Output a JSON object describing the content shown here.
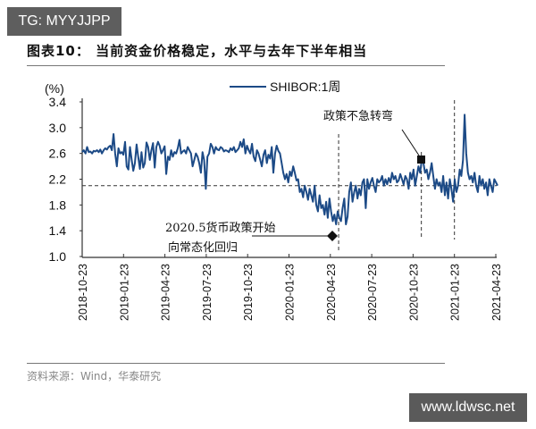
{
  "watermarks": {
    "top": "TG: MYYJJPP",
    "bottom": "www.ldwsc.net"
  },
  "figure": {
    "title": "图表10： 当前资金价格稳定，水平与去年下半年相当",
    "source": "资料来源：Wind，华泰研究"
  },
  "colors": {
    "line": "#1c4a86",
    "axis": "#333333",
    "text": "#111111"
  },
  "chart_data": {
    "type": "line",
    "title": "图表10： 当前资金价格稳定，水平与去年下半年相当",
    "xlabel": "",
    "ylabel": "(%)",
    "ylim": [
      1.0,
      3.4
    ],
    "yticks": [
      "3.4",
      "3.0",
      "2.6",
      "2.2",
      "1.8",
      "1.4",
      "1.0"
    ],
    "xticks": [
      "2018-10-23",
      "2019-01-23",
      "2019-04-23",
      "2019-07-23",
      "2019-10-23",
      "2020-01-23",
      "2020-04-23",
      "2020-07-23",
      "2020-10-23",
      "2021-01-23",
      "2021-04-23"
    ],
    "grid": false,
    "legend": {
      "position": "top-right",
      "entries": [
        "SHIBOR:1周"
      ]
    },
    "reference_line": {
      "y": 2.1,
      "style": "dashed",
      "label": ""
    },
    "vertical_markers": [
      {
        "x_index": 6.2,
        "style": "dashed"
      },
      {
        "x_index": 8.2,
        "style": "dashed"
      },
      {
        "x_index": 9.0,
        "style": "dashed"
      }
    ],
    "annotations": [
      {
        "text": [
          "2020.5货币政策开始",
          "向常态化回归"
        ],
        "marker": "diamond",
        "x_index": 6.0,
        "y": 1.33
      },
      {
        "text": [
          "政策不急转弯"
        ],
        "marker": "square",
        "x_index": 8.1,
        "y": 2.5
      }
    ],
    "series": [
      {
        "name": "SHIBOR:1周",
        "x_start": "2018-10-23",
        "x_end": "2021-05-01",
        "values": [
          2.62,
          2.65,
          2.6,
          2.7,
          2.62,
          2.63,
          2.6,
          2.64,
          2.63,
          2.65,
          2.62,
          2.66,
          2.6,
          2.65,
          2.68,
          2.66,
          2.7,
          2.72,
          2.65,
          2.9,
          2.6,
          2.4,
          2.68,
          2.6,
          2.62,
          2.58,
          2.78,
          2.4,
          2.35,
          2.7,
          2.5,
          2.33,
          2.45,
          2.74,
          2.55,
          2.36,
          2.62,
          2.38,
          2.45,
          2.77,
          2.7,
          2.5,
          2.65,
          2.76,
          2.38,
          2.7,
          2.78,
          2.72,
          2.6,
          2.65,
          2.71,
          2.28,
          2.55,
          2.5,
          2.65,
          2.55,
          2.62,
          2.6,
          2.68,
          2.81,
          2.6,
          2.63,
          2.65,
          2.6,
          2.7,
          2.65,
          2.6,
          2.4,
          2.5,
          2.6,
          2.55,
          2.45,
          2.3,
          2.62,
          2.5,
          2.05,
          2.55,
          2.6,
          2.75,
          2.7,
          2.6,
          2.7,
          2.66,
          2.65,
          2.7,
          2.68,
          2.63,
          2.65,
          2.64,
          2.62,
          2.68,
          2.65,
          2.7,
          2.62,
          2.65,
          2.68,
          2.78,
          2.7,
          2.82,
          2.6,
          2.72,
          2.65,
          2.6,
          2.75,
          2.55,
          2.48,
          2.65,
          2.6,
          2.5,
          2.4,
          2.58,
          2.65,
          2.45,
          2.58,
          2.52,
          2.7,
          2.3,
          2.6,
          2.72,
          2.64,
          2.6,
          2.45,
          2.3,
          2.2,
          2.28,
          2.15,
          2.32,
          2.25,
          2.4,
          2.3,
          2.18,
          2.2,
          2.0,
          2.05,
          1.92,
          2.1,
          2.0,
          1.88,
          2.05,
          1.95,
          1.85,
          2.1,
          1.8,
          1.7,
          1.95,
          1.75,
          1.8,
          1.65,
          1.85,
          1.6,
          1.9,
          1.7,
          1.55,
          1.65,
          1.5,
          1.7,
          1.6,
          1.55,
          1.75,
          1.9,
          1.5,
          1.62,
          2.0,
          2.15,
          1.85,
          2.0,
          2.1,
          1.9,
          2.05,
          1.95,
          2.15,
          2.2,
          1.75,
          2.2,
          2.05,
          2.15,
          2.22,
          2.1,
          2.0,
          2.2,
          2.15,
          2.18,
          2.25,
          2.1,
          2.2,
          2.12,
          2.22,
          2.15,
          2.3,
          2.2,
          2.25,
          2.15,
          2.18,
          2.28,
          2.2,
          2.12,
          2.25,
          2.2,
          2.05,
          2.3,
          2.2,
          2.35,
          2.1,
          2.25,
          2.4,
          2.3,
          2.5,
          2.45,
          2.3,
          2.35,
          2.2,
          2.3,
          2.45,
          2.25,
          2.05,
          2.2,
          2.1,
          2.15,
          2.0,
          2.25,
          1.95,
          2.15,
          1.9,
          2.2,
          2.05,
          1.85,
          2.2,
          2.0,
          2.1,
          2.35,
          2.25,
          2.5,
          3.2,
          2.6,
          2.3,
          2.2,
          2.25,
          2.15,
          2.3,
          2.1,
          2.0,
          2.25,
          2.1,
          2.2,
          2.05,
          2.15,
          1.95,
          2.2,
          2.1,
          2.0,
          2.2,
          2.15,
          2.1
        ]
      }
    ]
  },
  "legend": {
    "label": "SHIBOR:1周"
  },
  "axis": {
    "unit": "(%)"
  },
  "annotations": {
    "policy_start_line1": "2020.5货币政策开始",
    "policy_start_line2": "向常态化回归",
    "no_sharp_turn": "政策不急转弯"
  }
}
